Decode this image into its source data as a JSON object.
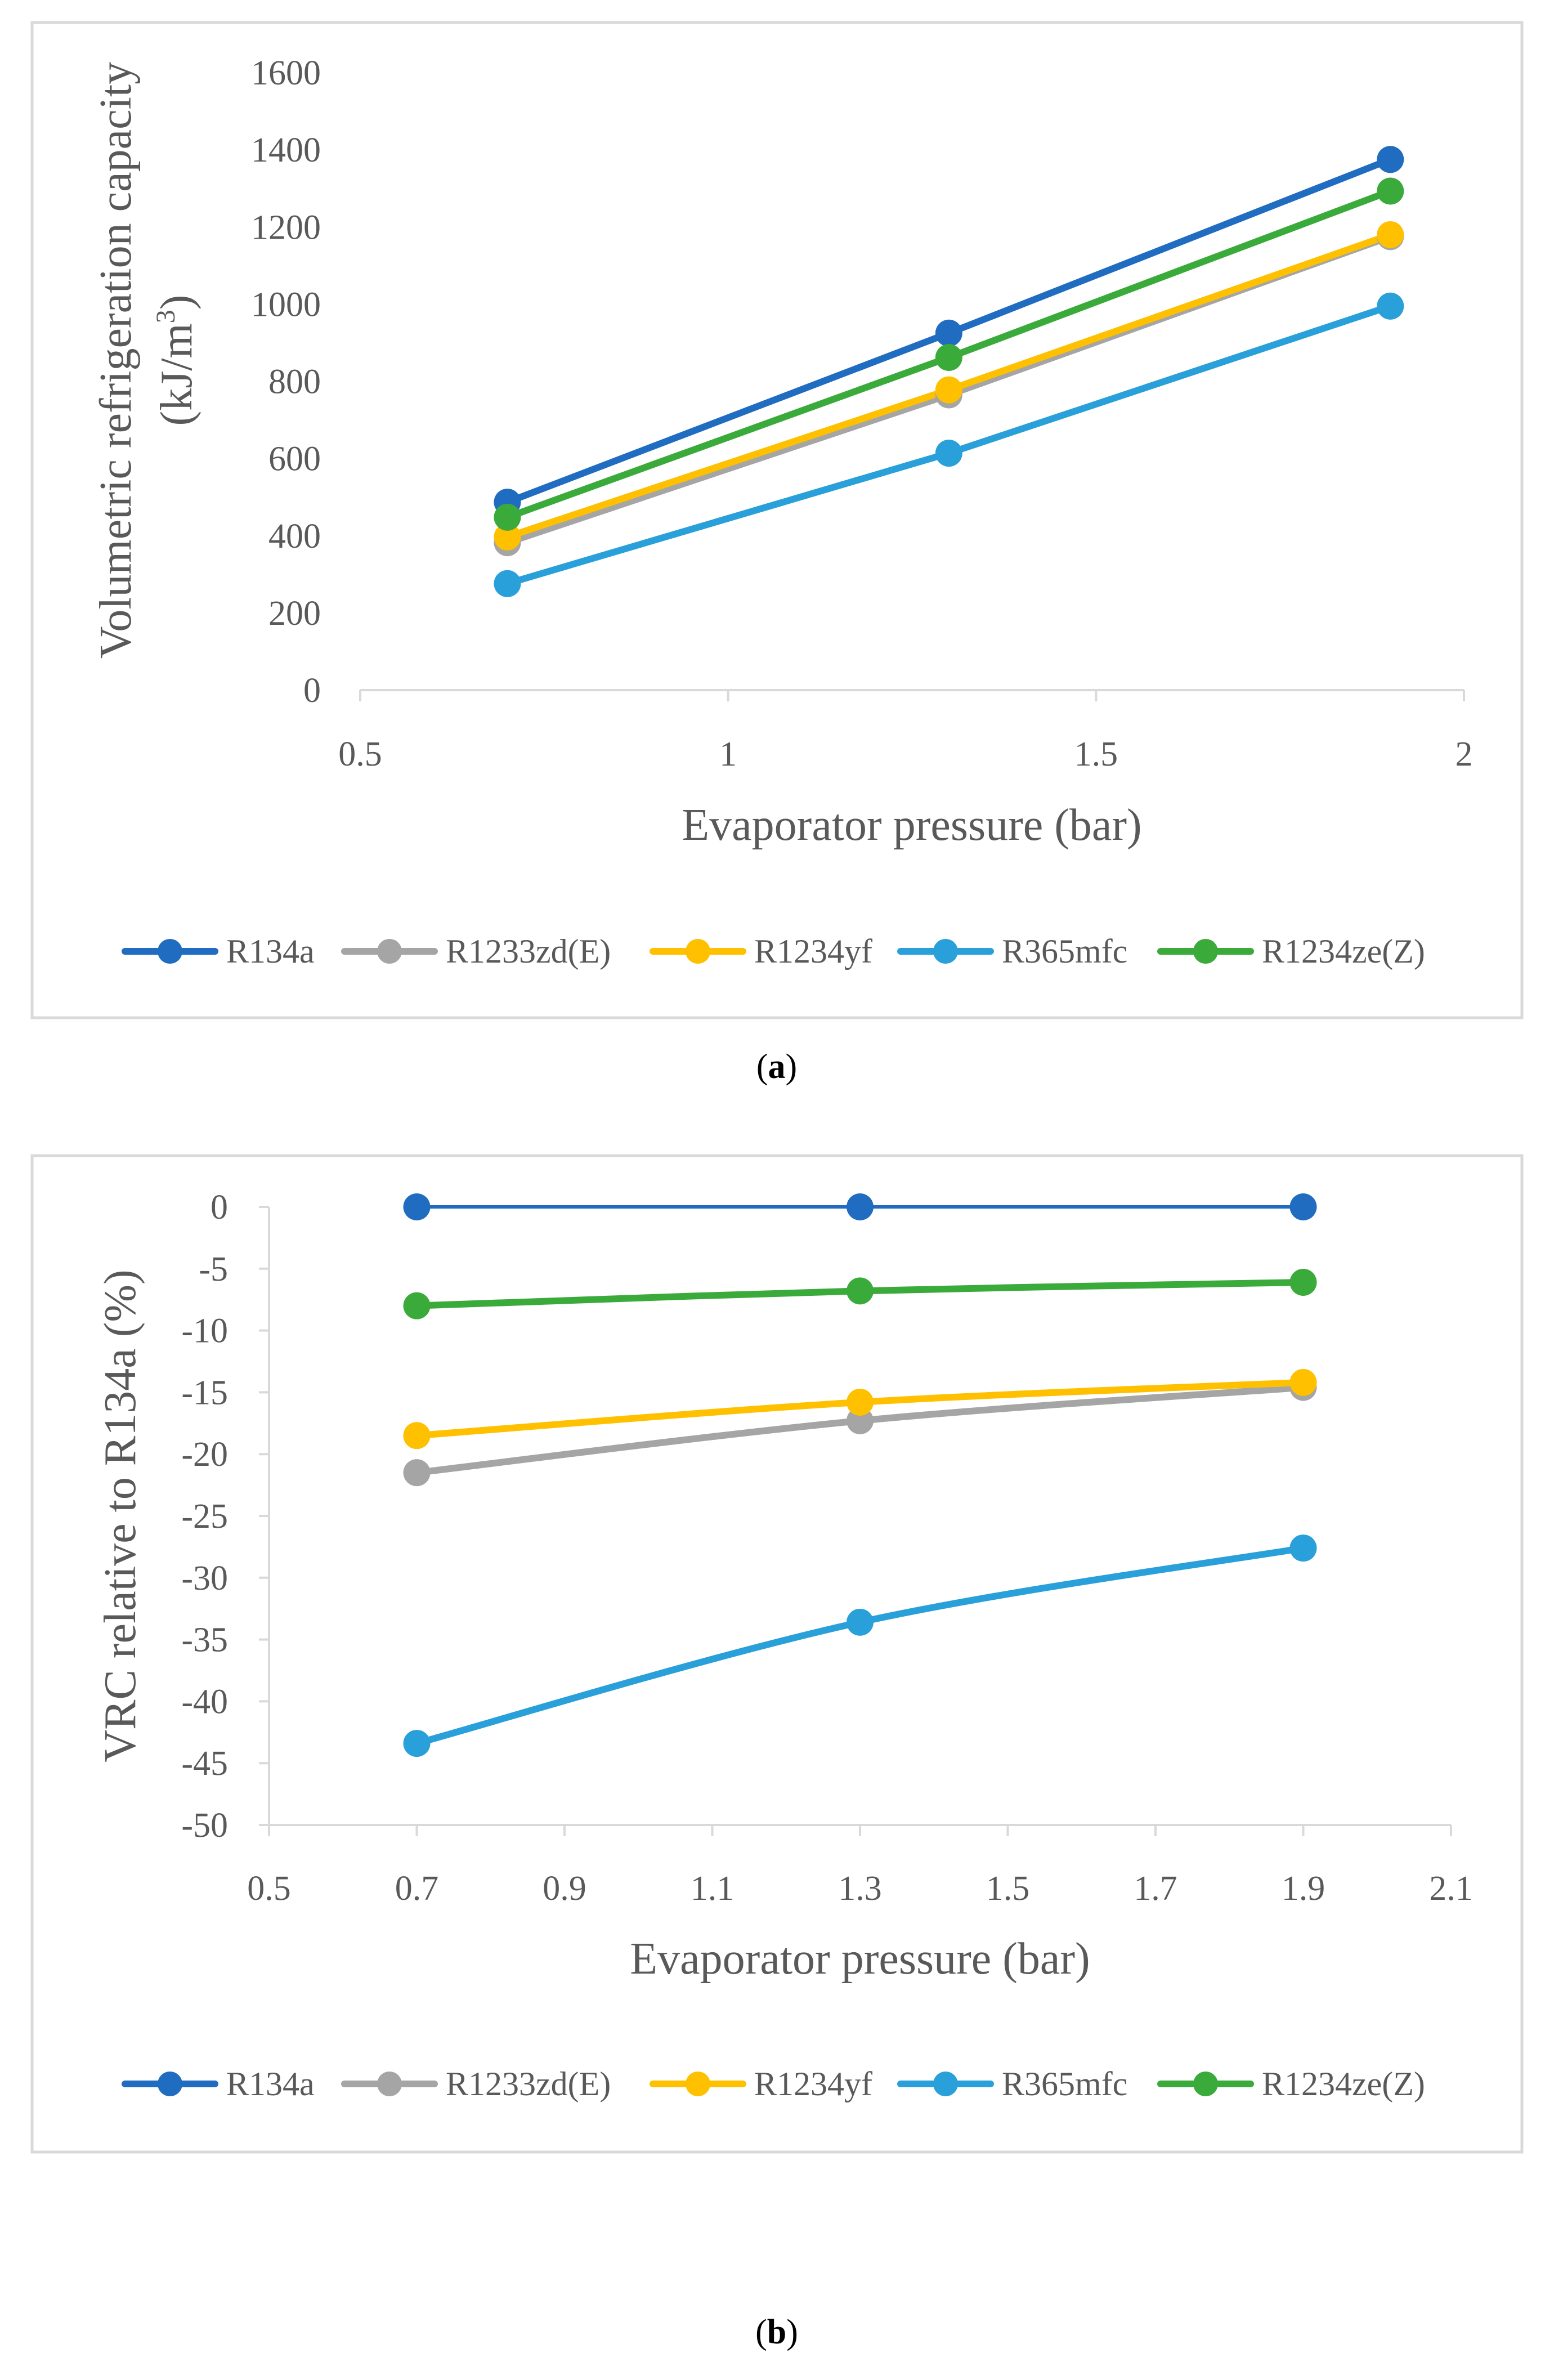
{
  "chart_data": [
    {
      "type": "line",
      "panel": "a",
      "caption_letter": "a",
      "xlabel": "Evaporator pressure (bar)",
      "ylabel": "Volumetric refrigeration capacity",
      "ylabel_unit_prefix": "(kJ/m",
      "ylabel_unit_sup": "3",
      "ylabel_unit_suffix": ")",
      "xlim": [
        0.5,
        2
      ],
      "ylim": [
        0,
        1600
      ],
      "xticks": [
        "0.5",
        "1",
        "1.5",
        "2"
      ],
      "xtick_values": [
        0.5,
        1,
        1.5,
        2
      ],
      "yticks": [
        "0",
        "200",
        "400",
        "600",
        "800",
        "1000",
        "1200",
        "1400",
        "1600"
      ],
      "ytick_values": [
        0,
        200,
        400,
        600,
        800,
        1000,
        1200,
        1400,
        1600
      ],
      "grid": false,
      "legend_position": "bottom",
      "x": [
        0.7,
        1.3,
        1.9
      ],
      "series": [
        {
          "name": "R134a",
          "color": "#1f6cc1",
          "values": [
            487,
            925,
            1375
          ]
        },
        {
          "name": "R1233zd(E)",
          "color": "#a5a5a5",
          "values": [
            382,
            765,
            1175
          ]
        },
        {
          "name": "R1234yf",
          "color": "#ffc000",
          "values": [
            397,
            778,
            1180
          ]
        },
        {
          "name": "R365mfc",
          "color": "#29a0da",
          "values": [
            276,
            614,
            995
          ]
        },
        {
          "name": "R1234ze(Z)",
          "color": "#3aab3b",
          "values": [
            448,
            862,
            1293
          ]
        }
      ]
    },
    {
      "type": "line",
      "panel": "b",
      "caption_letter": "b",
      "xlabel": "Evaporator pressure (bar)",
      "ylabel": "VRC relative to R134a (%)",
      "xlim": [
        0.5,
        2.1
      ],
      "ylim": [
        -50,
        0
      ],
      "xticks": [
        "0.5",
        "0.7",
        "0.9",
        "1.1",
        "1.3",
        "1.5",
        "1.7",
        "1.9",
        "2.1"
      ],
      "xtick_values": [
        0.5,
        0.7,
        0.9,
        1.1,
        1.3,
        1.5,
        1.7,
        1.9,
        2.1
      ],
      "yticks": [
        "0",
        "-5",
        "-10",
        "-15",
        "-20",
        "-25",
        "-30",
        "-35",
        "-40",
        "-45",
        "-50"
      ],
      "ytick_values": [
        0,
        -5,
        -10,
        -15,
        -20,
        -25,
        -30,
        -35,
        -40,
        -45,
        -50
      ],
      "grid": false,
      "legend_position": "bottom",
      "x": [
        0.7,
        1.3,
        1.9
      ],
      "series": [
        {
          "name": "R134a",
          "color": "#1f6cc1",
          "values": [
            0,
            0,
            0
          ]
        },
        {
          "name": "R1233zd(E)",
          "color": "#a5a5a5",
          "values": [
            -21.5,
            -17.3,
            -14.6
          ]
        },
        {
          "name": "R1234yf",
          "color": "#ffc000",
          "values": [
            -18.5,
            -15.8,
            -14.2
          ]
        },
        {
          "name": "R365mfc",
          "color": "#29a0da",
          "values": [
            -43.4,
            -33.6,
            -27.6
          ]
        },
        {
          "name": "R1234ze(Z)",
          "color": "#3aab3b",
          "values": [
            -8.0,
            -6.8,
            -6.1
          ]
        }
      ]
    }
  ]
}
